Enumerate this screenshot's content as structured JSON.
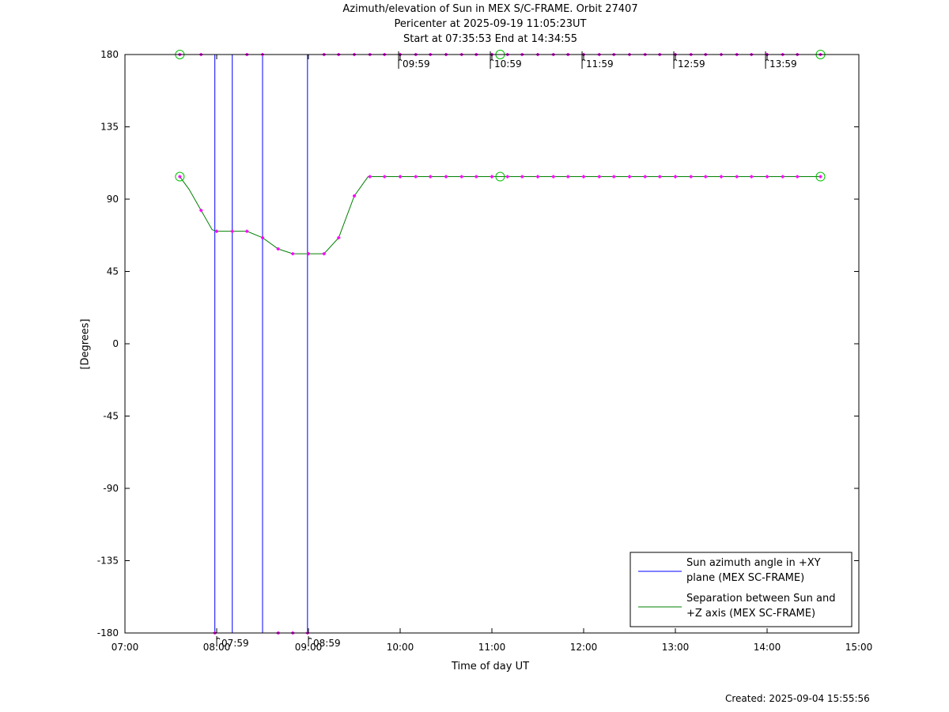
{
  "chart_data": {
    "type": "line",
    "title_lines": [
      "Azimuth/elevation of Sun in MEX S/C-FRAME.  Orbit 27407",
      "Pericenter at 2025-09-19 11:05:23UT",
      "Start at 07:35:53 End at 14:34:55"
    ],
    "xlabel": "Time of day UT",
    "ylabel": "[Degrees]",
    "xlim": [
      7.0,
      15.0
    ],
    "ylim": [
      -180,
      180
    ],
    "xticks": [
      {
        "v": 7,
        "label": "07:00"
      },
      {
        "v": 8,
        "label": "08:00"
      },
      {
        "v": 9,
        "label": "09:00"
      },
      {
        "v": 10,
        "label": "10:00"
      },
      {
        "v": 11,
        "label": "11:00"
      },
      {
        "v": 12,
        "label": "12:00"
      },
      {
        "v": 13,
        "label": "13:00"
      },
      {
        "v": 14,
        "label": "14:00"
      },
      {
        "v": 15,
        "label": "15:00"
      }
    ],
    "yticks": [
      {
        "v": 180,
        "label": "180"
      },
      {
        "v": 135,
        "label": "135"
      },
      {
        "v": 90,
        "label": "90"
      },
      {
        "v": 45,
        "label": "45"
      },
      {
        "v": 0,
        "label": "0"
      },
      {
        "v": -45,
        "label": "-45"
      },
      {
        "v": -90,
        "label": "-90"
      },
      {
        "v": -135,
        "label": "-135"
      },
      {
        "v": -180,
        "label": "-180"
      }
    ],
    "hour_markers_top": [
      {
        "t": 9.983,
        "label": "09:59"
      },
      {
        "t": 10.983,
        "label": "10:59"
      },
      {
        "t": 11.983,
        "label": "11:59"
      },
      {
        "t": 12.983,
        "label": "12:59"
      },
      {
        "t": 13.983,
        "label": "13:59"
      }
    ],
    "hour_markers_bottom": [
      {
        "t": 7.983,
        "label": "07:59"
      },
      {
        "t": 8.983,
        "label": "08:59"
      }
    ],
    "series": [
      {
        "name": "Sun azimuth angle in +XY plane (MEX SC-FRAME)",
        "legend_lines": [
          "Sun azimuth angle in +XY",
          "plane (MEX SC-FRAME)"
        ],
        "color": "#0000ff",
        "segments": [
          {
            "x": [
              7.598,
              7.98
            ],
            "y": [
              180,
              180
            ]
          },
          {
            "x": [
              7.98,
              7.98
            ],
            "y": [
              180,
              -180
            ]
          },
          {
            "x": [
              7.98,
              8.17
            ],
            "y": [
              -180,
              -180
            ]
          },
          {
            "x": [
              8.17,
              8.17
            ],
            "y": [
              -180,
              180
            ]
          },
          {
            "x": [
              8.17,
              8.5
            ],
            "y": [
              180,
              180
            ]
          },
          {
            "x": [
              8.5,
              8.5
            ],
            "y": [
              180,
              -180
            ]
          },
          {
            "x": [
              8.5,
              8.99
            ],
            "y": [
              -180,
              -180
            ]
          },
          {
            "x": [
              8.99,
              8.99
            ],
            "y": [
              -180,
              180
            ]
          },
          {
            "x": [
              8.99,
              14.582
            ],
            "y": [
              180,
              180
            ]
          }
        ],
        "markers_x": [
          7.598,
          7.83,
          7.98,
          8.33,
          8.5,
          8.67,
          8.83,
          8.99,
          9.17,
          9.33,
          9.5,
          9.67,
          9.83,
          10.0,
          10.17,
          10.33,
          10.5,
          10.67,
          10.83,
          11.0,
          11.17,
          11.33,
          11.5,
          11.67,
          11.83,
          12.0,
          12.17,
          12.33,
          12.5,
          12.67,
          12.83,
          13.0,
          13.17,
          13.33,
          13.5,
          13.67,
          13.83,
          14.0,
          14.17,
          14.33,
          14.582
        ],
        "markers_y": [
          180,
          180,
          -180,
          180,
          180,
          -180,
          -180,
          -180,
          180,
          180,
          180,
          180,
          180,
          180,
          180,
          180,
          180,
          180,
          180,
          180,
          180,
          180,
          180,
          180,
          180,
          180,
          180,
          180,
          180,
          180,
          180,
          180,
          180,
          180,
          180,
          180,
          180,
          180,
          180,
          180,
          180
        ],
        "circle_x": [
          7.598,
          11.09,
          14.582
        ],
        "circle_y": [
          180,
          180,
          180
        ]
      },
      {
        "name": "Separation between Sun and +Z axis (MEX SC-FRAME)",
        "legend_lines": [
          "Separation between Sun and",
          "+Z axis (MEX SC-FRAME)"
        ],
        "color": "#008000",
        "x": [
          7.598,
          7.7,
          7.83,
          7.95,
          8.0,
          8.17,
          8.33,
          8.5,
          8.67,
          8.83,
          9.0,
          9.17,
          9.33,
          9.5,
          9.65,
          9.83,
          10.0,
          10.5,
          11.0,
          11.5,
          12.0,
          12.5,
          13.0,
          13.5,
          14.0,
          14.582
        ],
        "y": [
          104,
          96,
          83,
          71,
          70,
          70,
          70,
          66,
          59,
          56,
          56,
          56,
          66,
          92,
          104,
          104,
          104,
          104,
          104,
          104,
          104,
          104,
          104,
          104,
          104,
          104
        ],
        "markers_x": [
          7.598,
          7.83,
          8.0,
          8.17,
          8.33,
          8.5,
          8.67,
          8.83,
          9.0,
          9.17,
          9.33,
          9.5,
          9.67,
          9.83,
          10.0,
          10.17,
          10.33,
          10.5,
          10.67,
          10.83,
          11.0,
          11.17,
          11.33,
          11.5,
          11.67,
          11.83,
          12.0,
          12.17,
          12.33,
          12.5,
          12.67,
          12.83,
          13.0,
          13.17,
          13.33,
          13.5,
          13.67,
          13.83,
          14.0,
          14.17,
          14.33,
          14.582
        ],
        "markers_y": [
          104,
          83,
          70,
          70,
          70,
          66,
          59,
          56,
          56,
          56,
          66,
          92,
          104,
          104,
          104,
          104,
          104,
          104,
          104,
          104,
          104,
          104,
          104,
          104,
          104,
          104,
          104,
          104,
          104,
          104,
          104,
          104,
          104,
          104,
          104,
          104,
          104,
          104,
          104,
          104,
          104,
          104
        ],
        "circle_x": [
          7.598,
          11.09,
          14.582
        ],
        "circle_y": [
          104,
          104,
          104
        ]
      }
    ],
    "legend_position": "bottom-right",
    "grid": false
  },
  "footer": {
    "created": "Created: 2025-09-04 15:55:56"
  },
  "colors": {
    "marker": "#ff00ff",
    "axis": "#000000"
  }
}
